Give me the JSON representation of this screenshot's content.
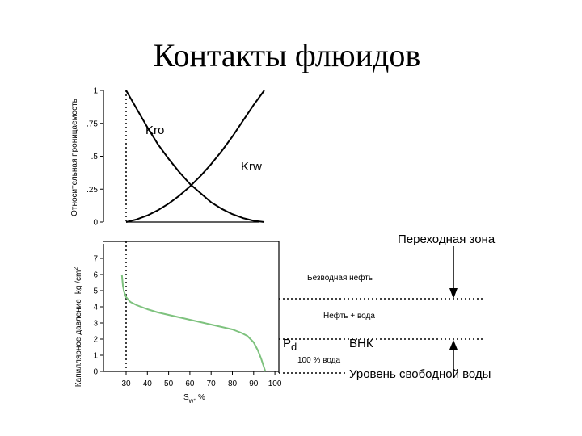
{
  "title": "Контакты флюидов",
  "colors": {
    "pc_curve": "#7ec27e",
    "ink": "#000000",
    "dotted": "#000000"
  },
  "chart_data": [
    {
      "type": "line",
      "ylabel": "Относительная проницаемость",
      "ylim": [
        0,
        1
      ],
      "yticks": [
        "0",
        ".25",
        ".5",
        ".75",
        "1"
      ],
      "xlim": [
        30,
        100
      ],
      "series": [
        {
          "name": "Kro",
          "x": [
            30,
            35,
            40,
            45,
            50,
            55,
            60,
            65,
            70,
            75,
            80,
            85,
            90,
            95
          ],
          "y": [
            1.0,
            0.86,
            0.72,
            0.59,
            0.48,
            0.38,
            0.29,
            0.22,
            0.15,
            0.1,
            0.06,
            0.03,
            0.01,
            0.0
          ]
        },
        {
          "name": "Krw",
          "x": [
            30,
            35,
            40,
            45,
            50,
            55,
            60,
            65,
            70,
            75,
            80,
            85,
            90,
            95
          ],
          "y": [
            0.0,
            0.02,
            0.05,
            0.09,
            0.14,
            0.2,
            0.27,
            0.35,
            0.44,
            0.54,
            0.65,
            0.77,
            0.89,
            1.0
          ]
        }
      ]
    },
    {
      "type": "line",
      "ylabel": "Капиллярное давление",
      "yunit": "kg /cm2",
      "ylim": [
        0,
        7
      ],
      "yticks": [
        "0",
        "1",
        "2",
        "3",
        "4",
        "5",
        "6",
        "7"
      ],
      "xlabel": "Sw, %",
      "xticks": [
        "30",
        "40",
        "50",
        "60",
        "70",
        "80",
        "90",
        "100"
      ],
      "xlim": [
        30,
        100
      ],
      "series": [
        {
          "x": [
            28,
            28.5,
            29,
            30,
            32,
            35,
            40,
            45,
            50,
            55,
            60,
            65,
            70,
            75,
            80,
            84,
            87,
            90,
            92,
            93.5,
            94.5,
            95.5
          ],
          "y": [
            6.0,
            5.3,
            4.95,
            4.6,
            4.3,
            4.1,
            3.85,
            3.65,
            3.5,
            3.35,
            3.2,
            3.05,
            2.9,
            2.75,
            2.6,
            2.4,
            2.2,
            1.8,
            1.3,
            0.8,
            0.4,
            0.0
          ]
        }
      ]
    }
  ],
  "annotations": {
    "kro": "Kro",
    "krw": "Krw",
    "transition_zone": "Переходная зона",
    "waterfree_oil": "Безводная нефть",
    "oil_water": "Нефть + вода",
    "pd": "P",
    "pd_sub": "d",
    "water_100": "100 % вода",
    "owc": "ВНК",
    "fwl": "Уровень свободной воды",
    "sw": "S",
    "sw_sub": "w",
    "sw_unit": ", %",
    "pc_unit_main": "kg /cm",
    "pc_unit_sup": "2"
  }
}
